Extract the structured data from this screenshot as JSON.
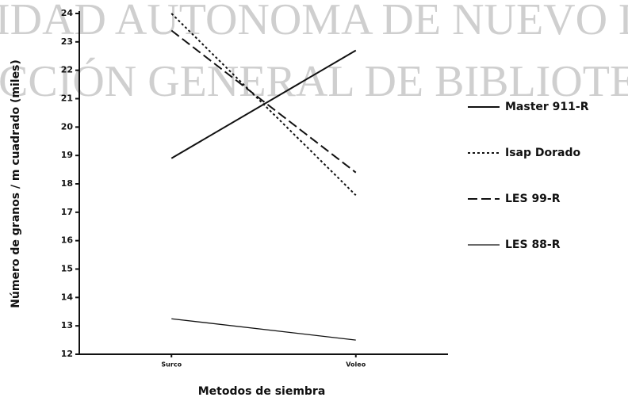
{
  "watermark": [
    "IDAD AUTONOMA DE NUEVO L",
    "CCIÓN GENERAL DE BIBLIOTECAS"
  ],
  "chart_data": {
    "type": "line",
    "categories": [
      "Surco",
      "Voleo"
    ],
    "xlabel": "Metodos de siembra",
    "ylabel": "Número de granos / m cuadrado (miles)",
    "ylim": [
      12,
      24
    ],
    "yticks": [
      12,
      13,
      14,
      15,
      16,
      17,
      18,
      19,
      20,
      21,
      22,
      23,
      24
    ],
    "legend": "right",
    "series": [
      {
        "name": "Master 911-R",
        "color": "#111111",
        "style": "solid",
        "values": [
          18.9,
          22.7
        ]
      },
      {
        "name": "Isap Dorado",
        "color": "#111111",
        "style": "dotted",
        "values": [
          24.0,
          17.6
        ]
      },
      {
        "name": "LES 99-R",
        "color": "#111111",
        "style": "dashed",
        "values": [
          23.4,
          18.4
        ]
      },
      {
        "name": "LES 88-R",
        "color": "#111111",
        "style": "thin",
        "values": [
          13.25,
          12.5
        ]
      }
    ]
  }
}
